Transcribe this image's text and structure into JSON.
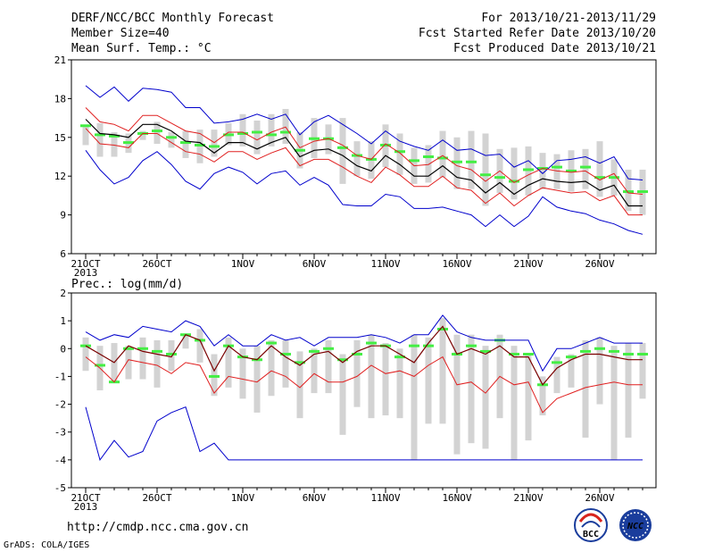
{
  "header": {
    "left": [
      "DERF/NCC/BCC Monthly Forecast",
      "Member Size=40",
      "Mean Surf. Temp.: °C"
    ],
    "right": [
      "For 2013/10/21-2013/11/29",
      "Fcst Started Refer Date 2013/10/20",
      "Fcst Produced Date 2013/10/21"
    ]
  },
  "url": "http://cmdp.ncc.cma.gov.cn",
  "grads_credit": "GrADS: COLA/IGES",
  "logos": [
    "BCC",
    "NCC"
  ],
  "colors": {
    "box": "#d3d3d3",
    "median": "#44ee44",
    "mean": "#000000",
    "sd": "#e02020",
    "range": "#0000cc",
    "mean_line_precip": "#7a0000"
  },
  "chart_data": [
    {
      "type": "line",
      "title": "Mean Surf. Temp.: °C",
      "ylim": [
        6,
        21
      ],
      "yticks": [
        6,
        9,
        12,
        15,
        18,
        21
      ],
      "xtick_labels": [
        "21OCT",
        "26OCT",
        "1NOV",
        "6NOV",
        "11NOV",
        "16NOV",
        "21NOV",
        "26NOV"
      ],
      "xtick_days": [
        0,
        5,
        11,
        16,
        21,
        26,
        31,
        36
      ],
      "year_label": "2013",
      "series": [
        {
          "role": "max",
          "values": [
            19.0,
            18.1,
            18.9,
            17.8,
            18.8,
            18.7,
            18.5,
            17.3,
            17.3,
            16.1,
            16.2,
            16.4,
            16.8,
            16.4,
            16.8,
            15.2,
            16.2,
            16.7,
            16.0,
            15.3,
            14.5,
            15.5,
            14.7,
            14.3,
            14.0,
            14.8,
            14.0,
            14.1,
            13.6,
            13.7,
            12.7,
            13.2,
            12.2,
            13.2,
            13.3,
            13.5,
            13.0,
            13.5,
            11.8,
            11.7
          ]
        },
        {
          "role": "mean_plus_sd",
          "values": [
            17.3,
            16.2,
            16.0,
            15.5,
            16.7,
            16.7,
            16.1,
            15.5,
            15.3,
            14.6,
            15.4,
            15.4,
            14.8,
            15.4,
            15.8,
            14.2,
            14.7,
            14.9,
            14.4,
            13.6,
            13.3,
            14.5,
            13.8,
            12.8,
            12.9,
            13.6,
            12.8,
            12.5,
            11.6,
            12.4,
            11.5,
            12.1,
            12.6,
            12.4,
            12.3,
            12.4,
            11.7,
            12.2,
            10.7,
            10.6
          ]
        },
        {
          "role": "mean",
          "values": [
            16.4,
            15.3,
            15.2,
            15.0,
            16.0,
            16.0,
            15.5,
            14.7,
            14.6,
            13.8,
            14.6,
            14.6,
            14.1,
            14.6,
            15.0,
            13.5,
            14.0,
            14.1,
            13.6,
            12.8,
            12.4,
            13.6,
            12.9,
            12.0,
            12.0,
            12.8,
            11.9,
            11.7,
            10.7,
            11.5,
            10.6,
            11.3,
            11.8,
            11.6,
            11.5,
            11.6,
            10.9,
            11.3,
            9.7,
            9.7
          ]
        },
        {
          "role": "mean_minus_sd",
          "values": [
            15.7,
            14.5,
            14.4,
            14.2,
            15.3,
            15.3,
            14.6,
            13.9,
            13.7,
            13.1,
            13.9,
            13.9,
            13.3,
            13.8,
            14.2,
            12.8,
            13.3,
            13.3,
            12.7,
            12.0,
            11.5,
            12.7,
            12.1,
            11.2,
            11.2,
            12.0,
            11.1,
            10.9,
            9.9,
            10.7,
            9.7,
            10.5,
            11.1,
            10.9,
            10.7,
            10.8,
            10.1,
            10.5,
            9.0,
            9.0
          ]
        },
        {
          "role": "min",
          "values": [
            14.0,
            12.5,
            11.4,
            11.9,
            13.2,
            13.9,
            12.9,
            11.6,
            11.0,
            12.2,
            12.7,
            12.3,
            11.4,
            12.2,
            12.4,
            11.3,
            11.9,
            11.3,
            9.8,
            9.7,
            9.7,
            10.6,
            10.4,
            9.5,
            9.5,
            9.6,
            9.3,
            9.0,
            8.1,
            9.0,
            8.1,
            8.9,
            10.4,
            9.6,
            9.3,
            9.1,
            8.6,
            8.3,
            7.8,
            7.5
          ]
        },
        {
          "role": "median",
          "values": [
            15.9,
            15.2,
            15.1,
            14.6,
            15.3,
            15.5,
            15.0,
            14.6,
            14.4,
            14.3,
            15.2,
            15.3,
            15.4,
            15.2,
            15.4,
            14.0,
            14.9,
            14.9,
            14.2,
            13.6,
            13.3,
            14.4,
            13.9,
            13.2,
            13.5,
            13.4,
            13.1,
            13.1,
            12.1,
            11.9,
            11.6,
            12.5,
            12.6,
            12.7,
            12.4,
            12.7,
            11.9,
            11.9,
            10.8,
            10.8
          ]
        },
        {
          "role": "box_high",
          "values": [
            15.9,
            16.1,
            15.4,
            15.3,
            15.5,
            16.2,
            15.4,
            15.5,
            15.6,
            15.6,
            16.1,
            16.8,
            16.3,
            16.8,
            17.2,
            15.4,
            16.5,
            16.0,
            16.5,
            14.7,
            14.7,
            16.0,
            15.3,
            14.2,
            14.4,
            15.5,
            15.0,
            15.5,
            15.3,
            14.1,
            14.2,
            14.3,
            13.8,
            13.7,
            14.0,
            14.1,
            14.7,
            13.3,
            12.5,
            12.5
          ]
        },
        {
          "role": "box_low",
          "values": [
            14.4,
            13.5,
            13.5,
            13.8,
            14.8,
            14.5,
            14.2,
            13.4,
            13.0,
            13.5,
            14.4,
            14.3,
            13.7,
            14.3,
            14.5,
            12.6,
            13.4,
            13.7,
            11.4,
            12.0,
            11.8,
            12.7,
            12.1,
            11.4,
            11.5,
            11.9,
            11.0,
            11.0,
            9.7,
            10.7,
            10.2,
            10.5,
            11.0,
            11.0,
            10.8,
            11.0,
            10.4,
            10.5,
            9.3,
            9.0
          ]
        }
      ]
    },
    {
      "type": "line",
      "title": "Prec.: log(mm/d)",
      "ylim": [
        -5,
        2
      ],
      "yticks": [
        -5,
        -4,
        -3,
        -2,
        -1,
        0,
        1,
        2
      ],
      "xtick_labels": [
        "21OCT",
        "26OCT",
        "1NOV",
        "6NOV",
        "11NOV",
        "16NOV",
        "21NOV",
        "26NOV"
      ],
      "xtick_days": [
        0,
        5,
        11,
        16,
        21,
        26,
        31,
        36
      ],
      "year_label": "2013",
      "series": [
        {
          "role": "max",
          "values": [
            0.6,
            0.3,
            0.5,
            0.4,
            0.8,
            0.7,
            0.6,
            1.0,
            0.8,
            0.1,
            0.5,
            0.1,
            0.1,
            0.5,
            0.3,
            0.4,
            0.1,
            0.4,
            0.4,
            0.4,
            0.5,
            0.4,
            0.2,
            0.5,
            0.5,
            1.2,
            0.6,
            0.4,
            0.3,
            0.3,
            0.3,
            0.3,
            -0.8,
            0.0,
            0.0,
            0.2,
            0.4,
            0.2,
            0.2,
            0.2
          ]
        },
        {
          "role": "mean",
          "values": [
            0.1,
            -0.2,
            -0.5,
            0.1,
            -0.1,
            -0.2,
            -0.3,
            0.5,
            0.3,
            -0.8,
            0.1,
            -0.3,
            -0.4,
            0.1,
            -0.3,
            -0.6,
            -0.2,
            -0.1,
            -0.5,
            -0.1,
            0.1,
            0.1,
            -0.2,
            -0.5,
            0.2,
            0.8,
            -0.2,
            0.0,
            -0.2,
            0.1,
            -0.3,
            -0.3,
            -1.3,
            -0.7,
            -0.4,
            -0.2,
            -0.2,
            -0.3,
            -0.4,
            -0.4
          ]
        },
        {
          "role": "mean_minus_sd",
          "values": [
            -0.3,
            -0.7,
            -1.2,
            -0.4,
            -0.5,
            -0.6,
            -0.9,
            -0.5,
            -0.6,
            -1.6,
            -1.0,
            -1.1,
            -1.2,
            -0.8,
            -1.0,
            -1.4,
            -0.9,
            -1.2,
            -1.2,
            -1.0,
            -0.6,
            -0.9,
            -0.8,
            -1.0,
            -0.6,
            -0.3,
            -1.3,
            -1.2,
            -1.6,
            -1.0,
            -1.3,
            -1.2,
            -2.3,
            -1.8,
            -1.6,
            -1.4,
            -1.3,
            -1.2,
            -1.3,
            -1.3
          ]
        },
        {
          "role": "min",
          "values": [
            -2.1,
            -4.0,
            -3.3,
            -3.9,
            -3.7,
            -2.6,
            -2.3,
            -2.1,
            -3.7,
            -3.4,
            -4.0,
            -4.0,
            -4.0,
            -4.0,
            -4.0,
            -4.0,
            -4.0,
            -4.0,
            -4.0,
            -4.0,
            -4.0,
            -4.0,
            -4.0,
            -4.0,
            -4.0,
            -4.0,
            -4.0,
            -4.0,
            -4.0,
            -4.0,
            -4.0,
            -4.0,
            -4.0,
            -4.0,
            -4.0,
            -4.0,
            -4.0,
            -4.0,
            -4.0,
            -4.0
          ]
        },
        {
          "role": "median",
          "values": [
            0.1,
            -0.6,
            -1.2,
            0.0,
            0.0,
            -0.1,
            -0.2,
            0.5,
            0.3,
            -1.0,
            0.1,
            -0.3,
            -0.4,
            0.2,
            -0.2,
            -0.5,
            -0.1,
            0.0,
            -0.4,
            -0.2,
            0.2,
            0.1,
            -0.3,
            0.1,
            0.1,
            0.7,
            -0.2,
            0.1,
            -0.1,
            0.3,
            -0.2,
            -0.2,
            -1.3,
            -0.5,
            -0.3,
            -0.1,
            0.0,
            -0.1,
            -0.2,
            -0.2
          ]
        },
        {
          "role": "box_high",
          "values": [
            0.4,
            0.1,
            0.2,
            0.1,
            0.4,
            0.3,
            0.3,
            0.5,
            0.7,
            -0.2,
            0.4,
            0.0,
            0.1,
            0.3,
            0.3,
            -0.1,
            0.0,
            0.3,
            -0.2,
            0.3,
            0.5,
            0.2,
            0.0,
            0.5,
            0.4,
            1.1,
            0.5,
            0.5,
            0.1,
            0.5,
            0.1,
            -0.2,
            -1.0,
            -0.3,
            -0.2,
            0.3,
            0.4,
            0.1,
            0.2,
            0.2
          ]
        },
        {
          "role": "box_low",
          "values": [
            -0.8,
            -1.5,
            -1.2,
            -1.1,
            -1.1,
            -1.4,
            -0.8,
            0.0,
            -0.5,
            -1.7,
            -1.4,
            -1.8,
            -2.3,
            -1.7,
            -1.4,
            -2.5,
            -1.6,
            -1.6,
            -3.1,
            -2.1,
            -2.5,
            -2.4,
            -2.5,
            -4.0,
            -2.7,
            -2.7,
            -3.8,
            -3.4,
            -3.6,
            -2.5,
            -4.0,
            -3.3,
            -2.4,
            -1.6,
            -1.4,
            -3.2,
            -2.0,
            -4.0,
            -3.2,
            -1.8
          ]
        }
      ]
    }
  ]
}
